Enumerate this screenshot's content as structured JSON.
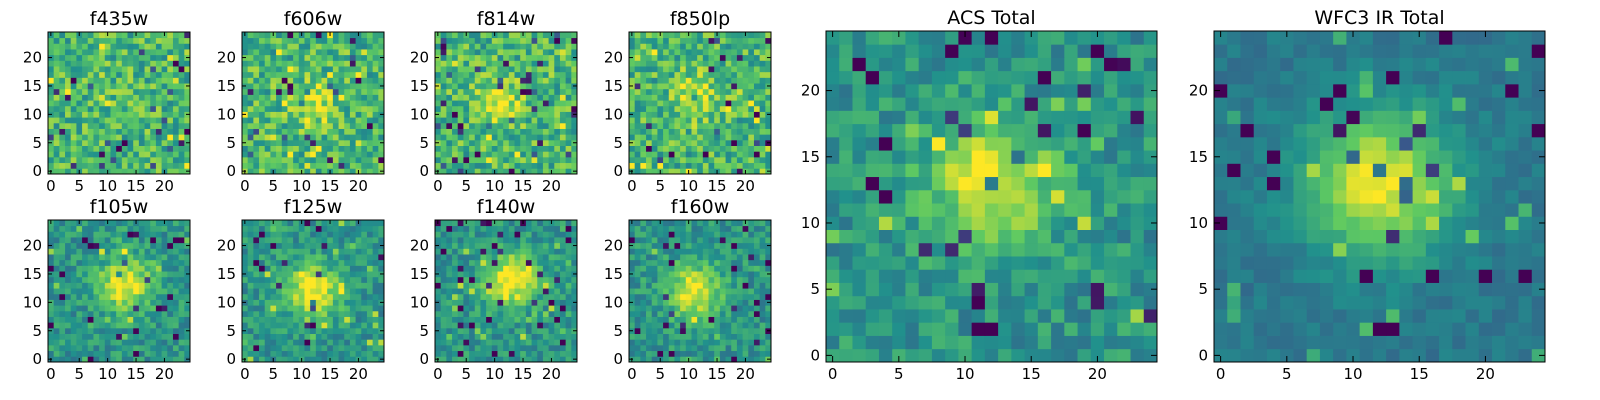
{
  "chart_data": [
    {
      "type": "heatmap",
      "title": "f435w",
      "group": "ACS",
      "signal": "weak",
      "grid_size": 25,
      "source_center": [
        12,
        12
      ],
      "x_ticks": [
        0,
        5,
        10,
        15,
        20
      ],
      "y_ticks": [
        0,
        5,
        10,
        15,
        20
      ],
      "xlim": [
        -0.5,
        24.5
      ],
      "ylim": [
        -0.5,
        24.5
      ],
      "colormap": "viridis"
    },
    {
      "type": "heatmap",
      "title": "f606w",
      "group": "ACS",
      "signal": "moderate",
      "grid_size": 25,
      "source_center": [
        12,
        12
      ],
      "x_ticks": [
        0,
        5,
        10,
        15,
        20
      ],
      "y_ticks": [
        0,
        5,
        10,
        15,
        20
      ],
      "xlim": [
        -0.5,
        24.5
      ],
      "ylim": [
        -0.5,
        24.5
      ],
      "colormap": "viridis"
    },
    {
      "type": "heatmap",
      "title": "f814w",
      "group": "ACS",
      "signal": "moderate",
      "grid_size": 25,
      "source_center": [
        11,
        12
      ],
      "x_ticks": [
        0,
        5,
        10,
        15,
        20
      ],
      "y_ticks": [
        0,
        5,
        10,
        15,
        20
      ],
      "xlim": [
        -0.5,
        24.5
      ],
      "ylim": [
        -0.5,
        24.5
      ],
      "colormap": "viridis"
    },
    {
      "type": "heatmap",
      "title": "f850lp",
      "group": "ACS",
      "signal": "moderate",
      "grid_size": 25,
      "source_center": [
        11,
        13
      ],
      "x_ticks": [
        0,
        5,
        10,
        15,
        20
      ],
      "y_ticks": [
        0,
        5,
        10,
        15,
        20
      ],
      "xlim": [
        -0.5,
        24.5
      ],
      "ylim": [
        -0.5,
        24.5
      ],
      "colormap": "viridis"
    },
    {
      "type": "heatmap",
      "title": "f105w",
      "group": "WFC3 IR",
      "signal": "strong",
      "grid_size": 25,
      "source_center": [
        13,
        13
      ],
      "x_ticks": [
        0,
        5,
        10,
        15,
        20
      ],
      "y_ticks": [
        0,
        5,
        10,
        15,
        20
      ],
      "xlim": [
        -0.5,
        24.5
      ],
      "ylim": [
        -0.5,
        24.5
      ],
      "colormap": "viridis"
    },
    {
      "type": "heatmap",
      "title": "f125w",
      "group": "WFC3 IR",
      "signal": "strong",
      "grid_size": 25,
      "source_center": [
        12,
        12
      ],
      "x_ticks": [
        0,
        5,
        10,
        15,
        20
      ],
      "y_ticks": [
        0,
        5,
        10,
        15,
        20
      ],
      "xlim": [
        -0.5,
        24.5
      ],
      "ylim": [
        -0.5,
        24.5
      ],
      "colormap": "viridis"
    },
    {
      "type": "heatmap",
      "title": "f140w",
      "group": "WFC3 IR",
      "signal": "strong",
      "grid_size": 25,
      "source_center": [
        13,
        14
      ],
      "x_ticks": [
        0,
        5,
        10,
        15,
        20
      ],
      "y_ticks": [
        0,
        5,
        10,
        15,
        20
      ],
      "xlim": [
        -0.5,
        24.5
      ],
      "ylim": [
        -0.5,
        24.5
      ],
      "colormap": "viridis"
    },
    {
      "type": "heatmap",
      "title": "f160w",
      "group": "WFC3 IR",
      "signal": "strong",
      "grid_size": 25,
      "source_center": [
        11,
        12
      ],
      "x_ticks": [
        0,
        5,
        10,
        15,
        20
      ],
      "y_ticks": [
        0,
        5,
        10,
        15,
        20
      ],
      "xlim": [
        -0.5,
        24.5
      ],
      "ylim": [
        -0.5,
        24.5
      ],
      "colormap": "viridis"
    },
    {
      "type": "heatmap",
      "title": "ACS Total",
      "group": "ACS",
      "signal": "strong",
      "grid_size": 25,
      "source_center": [
        12,
        13
      ],
      "x_ticks": [
        0,
        5,
        10,
        15,
        20
      ],
      "y_ticks": [
        0,
        5,
        10,
        15,
        20
      ],
      "xlim": [
        -0.5,
        24.5
      ],
      "ylim": [
        -0.5,
        24.5
      ],
      "colormap": "viridis"
    },
    {
      "type": "heatmap",
      "title": "WFC3 IR Total",
      "group": "WFC3 IR",
      "signal": "very strong",
      "grid_size": 25,
      "source_center": [
        12,
        13
      ],
      "x_ticks": [
        0,
        5,
        10,
        15,
        20
      ],
      "y_ticks": [
        0,
        5,
        10,
        15,
        20
      ],
      "xlim": [
        -0.5,
        24.5
      ],
      "ylim": [
        -0.5,
        24.5
      ],
      "colormap": "viridis"
    }
  ],
  "colors": {
    "viridis_stops": [
      "#440154",
      "#3b528b",
      "#21918c",
      "#5ec962",
      "#fde725"
    ],
    "axis": "#000000",
    "background": "#ffffff"
  }
}
